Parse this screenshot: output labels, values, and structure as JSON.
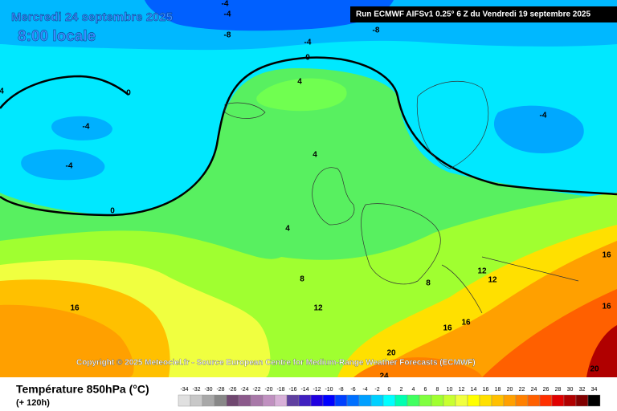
{
  "header": {
    "date": "Mercredi 24 septembre 2025",
    "time": "8:00 locale",
    "run": "Run ECMWF AIFSv1 0.25° 6 Z du Vendredi 19 septembre 2025"
  },
  "copyright": "Copyright © 2025 Meteociel.fr - Source European Centre for Medium-Range Weather Forecasts (ECMWF)",
  "footer": {
    "title": "Température 850hPa (°C)",
    "lead": "(+ 120h)"
  },
  "contour_labels": [
    "-4",
    "-4",
    "-8",
    "-8",
    "-4",
    "0",
    "0",
    "4",
    "-4",
    "-4",
    "-4",
    "4",
    "0",
    "4",
    "8",
    "12",
    "8",
    "12",
    "12",
    "16",
    "16",
    "16",
    "16",
    "16",
    "20",
    "20",
    "24",
    "4"
  ],
  "colorbar": {
    "ticks": [
      -34,
      -32,
      -30,
      -28,
      -26,
      -24,
      -22,
      -20,
      -18,
      -16,
      -14,
      -12,
      -10,
      -8,
      -6,
      -4,
      -2,
      0,
      2,
      4,
      6,
      8,
      10,
      12,
      14,
      16,
      18,
      20,
      22,
      24,
      26,
      28,
      30,
      32,
      34
    ],
    "colors": [
      "#e0e0e0",
      "#c8c8c8",
      "#a8a8a8",
      "#888888",
      "#704870",
      "#8c5a8c",
      "#a878a8",
      "#c090c0",
      "#d8b0d8",
      "#6040a0",
      "#4020c0",
      "#2000e0",
      "#0000ff",
      "#0040ff",
      "#0070ff",
      "#00a0ff",
      "#00d0ff",
      "#00ffff",
      "#00ffb0",
      "#40ff60",
      "#80ff40",
      "#a0ff30",
      "#c8ff30",
      "#f0ff40",
      "#ffff00",
      "#ffe000",
      "#ffc000",
      "#ffa000",
      "#ff8000",
      "#ff6000",
      "#ff3000",
      "#e00000",
      "#b00000",
      "#800000",
      "#000000"
    ]
  }
}
